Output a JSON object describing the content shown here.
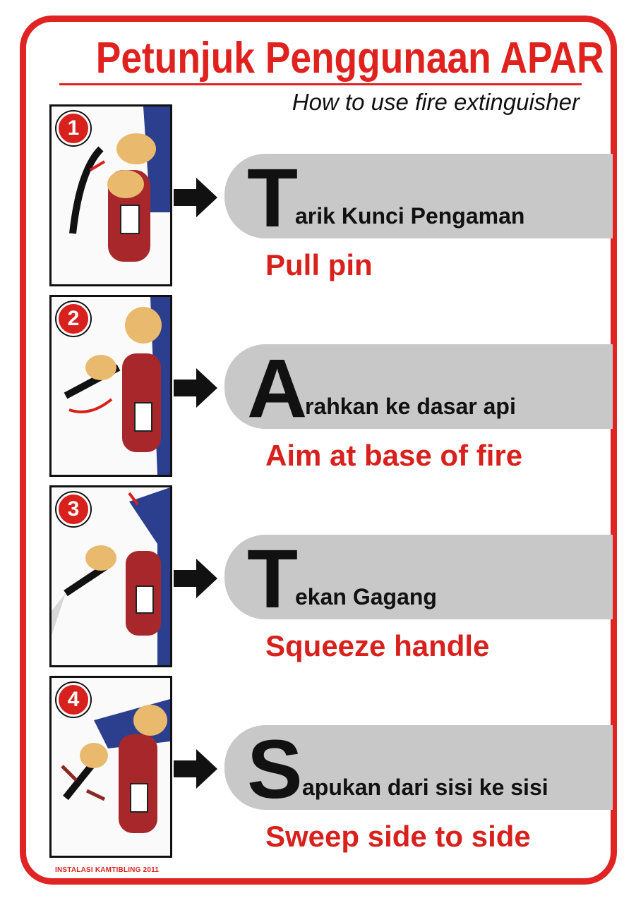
{
  "header": {
    "title": "Petunjuk Penggunaan APAR",
    "subtitle": "How to use fire extinguisher"
  },
  "steps": [
    {
      "number": "1",
      "letter": "T",
      "rest": "arik Kunci Pengaman",
      "english": "Pull pin"
    },
    {
      "number": "2",
      "letter": "A",
      "rest": "rahkan ke dasar api",
      "english": "Aim at base of fire"
    },
    {
      "number": "3",
      "letter": "T",
      "rest": "ekan Gagang",
      "english": "Squeeze handle"
    },
    {
      "number": "4",
      "letter": "S",
      "rest": "apukan dari sisi ke sisi",
      "english": "Sweep side to side"
    }
  ],
  "footer": {
    "credit": "INSTALASI KAMTIBLING 2011"
  },
  "colors": {
    "accent": "#e0221f",
    "bar": "#c8c8c8",
    "text": "#111111",
    "sleeve": "#2c3f8f",
    "skin": "#e9b96e"
  }
}
